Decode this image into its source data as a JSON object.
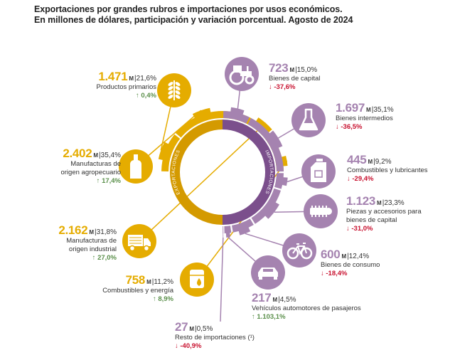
{
  "title": {
    "line1": "Exportaciones por grandes rubros e importaciones por usos económicos.",
    "line2": "En millones de dólares, participación y variación porcentual. Agosto de 2024"
  },
  "unit_mark": "M",
  "ring": {
    "exp_label": "EXPORTACIONES",
    "imp_label": "IMPORTACIONES"
  },
  "colors": {
    "exports": "#e5ac00",
    "exports_dark": "#d49a00",
    "imports": "#a583b0",
    "imports_dark": "#7b4f8c",
    "up": "#5a8f4a",
    "down": "#c8102e"
  },
  "chart_data": [
    {
      "type": "pie",
      "name": "EXPORTACIONES",
      "categories": [
        "Productos primarios",
        "Manufacturas de origen agropecuario",
        "Manufacturas de origen industrial",
        "Combustibles y energía"
      ],
      "values": [
        1471,
        2402,
        2162,
        758
      ],
      "shares": [
        "21,6%",
        "35,4%",
        "31,8%",
        "11,2%"
      ],
      "changes": [
        "0,4%",
        "17,4%",
        "27,0%",
        "8,9%"
      ],
      "value_text": [
        "1.471",
        "2.402",
        "2.162",
        "758"
      ],
      "icons": [
        "wheat-icon",
        "bottle-icon",
        "truck-icon",
        "oil-drum-icon"
      ],
      "label_lines": [
        [
          "Productos primarios"
        ],
        [
          "Manufacturas de",
          "origen agropecuario"
        ],
        [
          "Manufacturas de",
          "origen industrial"
        ],
        [
          "Combustibles y energía"
        ]
      ]
    },
    {
      "type": "pie",
      "name": "IMPORTACIONES",
      "categories": [
        "Bienes de capital",
        "Bienes intermedios",
        "Combustibles y lubricantes",
        "Piezas y accesorios para bienes de capital",
        "Bienes de consumo",
        "Vehículos automotores de pasajeros",
        "Resto de importaciones (¹)"
      ],
      "values": [
        723,
        1697,
        445,
        1123,
        600,
        217,
        27
      ],
      "shares": [
        "15,0%",
        "35,1%",
        "9,2%",
        "23,3%",
        "12,4%",
        "4,5%",
        "0,5%"
      ],
      "changes": [
        "-37,6%",
        "-36,5%",
        "-29,4%",
        "-31,0%",
        "-18,4%",
        "1.103,1%",
        "-40,9%"
      ],
      "value_text": [
        "723",
        "1.697",
        "445",
        "1.123",
        "600",
        "217",
        "27"
      ],
      "icons": [
        "tractor-icon",
        "flask-icon",
        "fuel-can-icon",
        "engine-part-icon",
        "bicycle-icon",
        "car-icon",
        "none"
      ],
      "label_lines": [
        [
          "Bienes de capital"
        ],
        [
          "Bienes intermedios"
        ],
        [
          "Combustibles y lubricantes"
        ],
        [
          "Piezas y accesorios para",
          "bienes de capital"
        ],
        [
          "Bienes de consumo"
        ],
        [
          "Vehículos automotores de pasajeros"
        ],
        [
          "Resto de importaciones (¹)"
        ]
      ]
    }
  ]
}
